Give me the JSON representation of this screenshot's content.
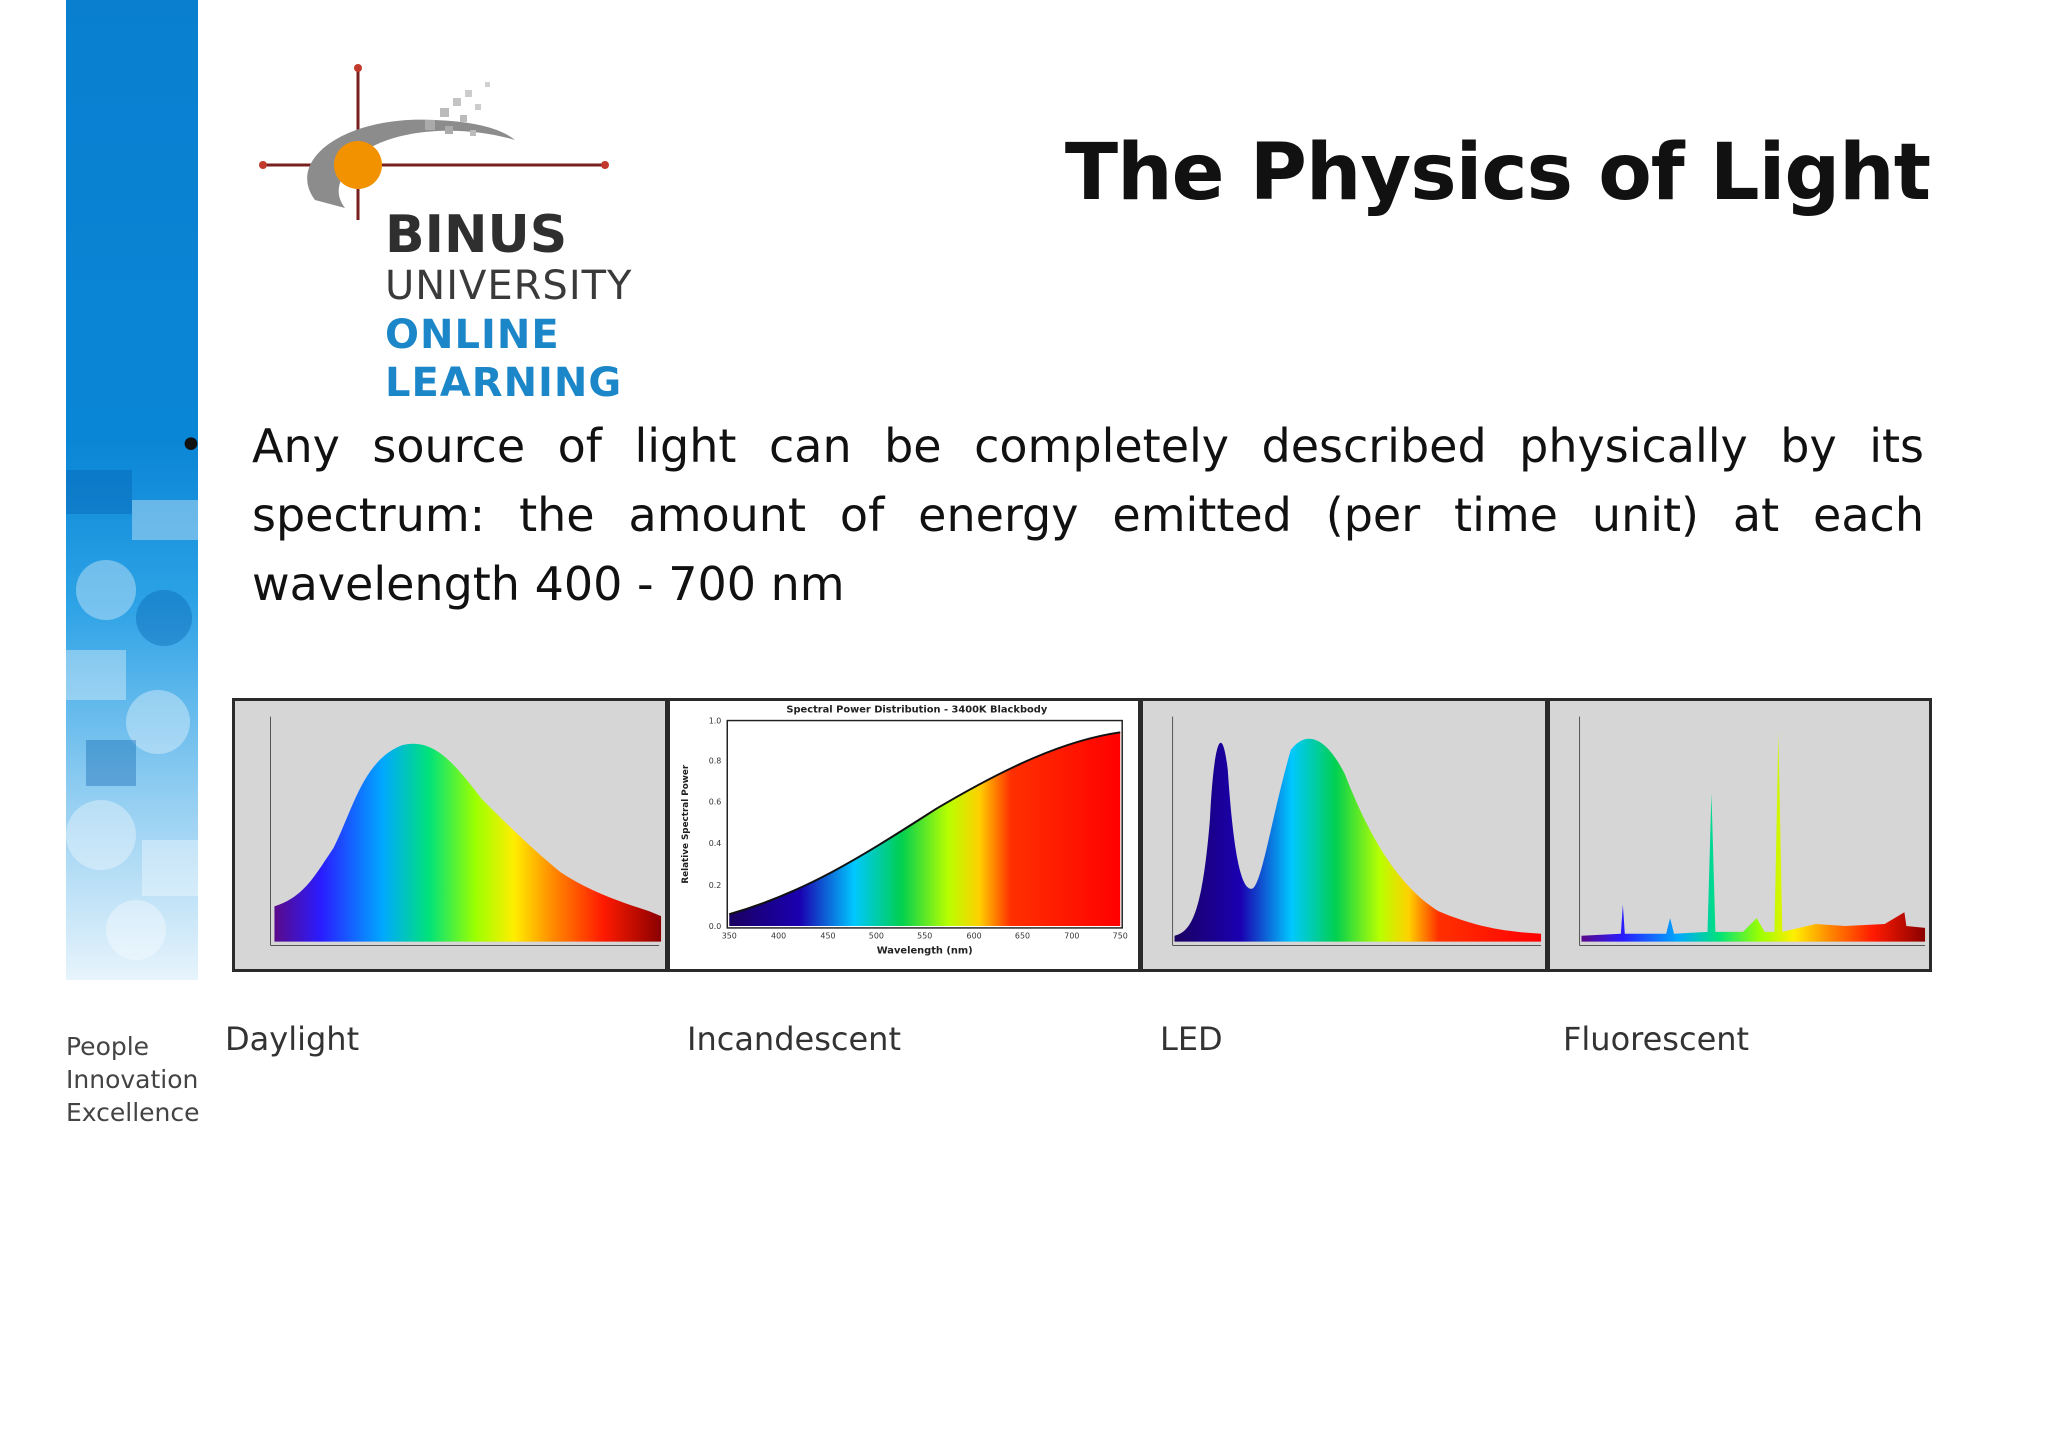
{
  "logo": {
    "line1": "BINUS",
    "line2": "UNIVERSITY",
    "line3": "ONLINE",
    "line4": "LEARNING"
  },
  "tagline": {
    "line1": "People",
    "line2": "Innovation",
    "line3": "Excellence"
  },
  "slide": {
    "title": "The Physics of Light",
    "bullet_marker": "•",
    "bullet": "Any source of light can be completely described physically by its spectrum: the amount of energy emitted (per time unit) at each wavelength 400 - 700 nm"
  },
  "incandescent_chart": {
    "title": "Spectral Power Distribution - 3400K Blackbody",
    "xlabel": "Wavelength (nm)",
    "ylabel": "Relative Spectral Power",
    "x_ticks": [
      "350",
      "400",
      "450",
      "500",
      "550",
      "600",
      "650",
      "700",
      "750"
    ],
    "y_ticks": [
      "0.0",
      "0.2",
      "0.4",
      "0.6",
      "0.8",
      "1.0"
    ]
  },
  "labels": {
    "daylight": "Daylight",
    "incandescent": "Incandescent",
    "led": "LED",
    "fluorescent": "Fluorescent"
  },
  "colors": {
    "sidebar_blue": "#0a86d6",
    "logo_blue": "#1b86c8",
    "logo_orange": "#f39200"
  }
}
